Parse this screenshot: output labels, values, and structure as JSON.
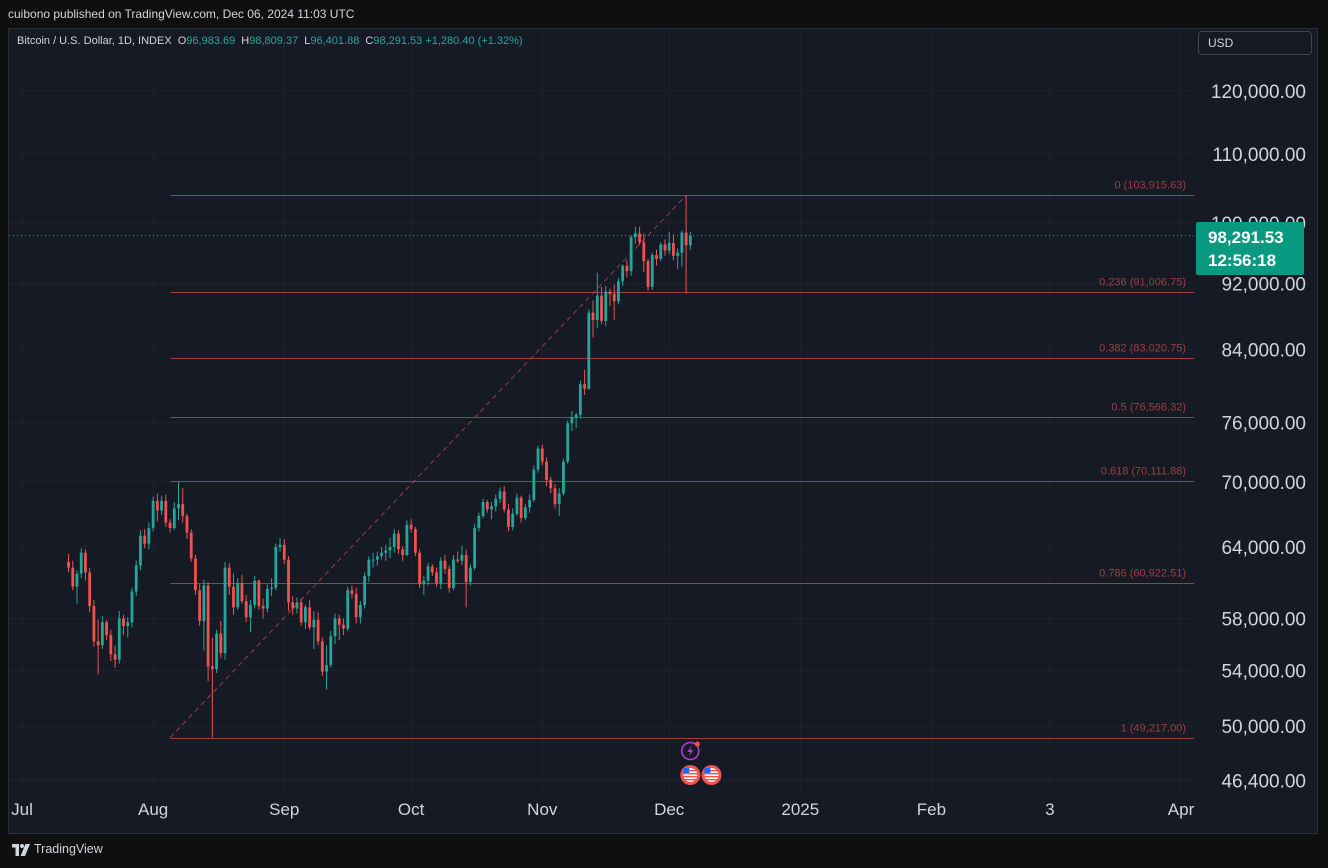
{
  "header": {
    "published_by": "cuibono published on TradingView.com, Dec 06, 2024 11:03 UTC"
  },
  "legend": {
    "symbol": "Bitcoin / U.S. Dollar, 1D, INDEX",
    "open_label": "O",
    "open": "96,983.69",
    "high_label": "H",
    "high": "98,809.37",
    "low_label": "L",
    "low": "96,401.88",
    "close_label": "C",
    "close": "98,291.53",
    "change": "+1,280.40 (+1.32%)"
  },
  "currency_button": "USD",
  "price_tag": {
    "price": "98,291.53",
    "countdown": "12:56:18"
  },
  "footer": {
    "brand": "TradingView"
  },
  "colors": {
    "up": "#26a69a",
    "down": "#ef5350",
    "fib": "#9c3f3f",
    "price_tag": "#089981"
  },
  "chart_data": {
    "type": "candlestick",
    "title": "Bitcoin / U.S. Dollar, 1D, INDEX",
    "xlabel": "",
    "ylabel": "",
    "y_scale": "log",
    "ylim": [
      45000,
      130000
    ],
    "y_ticks": [
      120000,
      110000,
      100000,
      92000,
      84000,
      76000,
      70000,
      64000,
      58000,
      54000,
      50000,
      46400
    ],
    "y_tick_labels": [
      "120,000.00",
      "110,000.00",
      "100,000.00",
      "92,000.00",
      "84,000.00",
      "76,000.00",
      "70,000.00",
      "64,000.00",
      "58,000.00",
      "54,000.00",
      "50,000.00",
      "46,400.00"
    ],
    "x_range": [
      "2024-06-28",
      "2025-04-07"
    ],
    "x_ticks": [
      {
        "date": "2024-07-01",
        "label": "Jul"
      },
      {
        "date": "2024-08-01",
        "label": "Aug"
      },
      {
        "date": "2024-09-01",
        "label": "Sep"
      },
      {
        "date": "2024-10-01",
        "label": "Oct"
      },
      {
        "date": "2024-11-01",
        "label": "Nov"
      },
      {
        "date": "2024-12-01",
        "label": "Dec"
      },
      {
        "date": "2025-01-01",
        "label": "2025"
      },
      {
        "date": "2025-02-01",
        "label": "Feb"
      },
      {
        "date": "2025-03-01",
        "label": "3"
      },
      {
        "date": "2025-04-01",
        "label": "Apr"
      }
    ],
    "last_price": 98291.53,
    "fibonacci": {
      "start": {
        "date": "2024-08-05",
        "price": 49217.0
      },
      "end": {
        "date": "2024-12-05",
        "price": 103915.63
      },
      "levels": [
        {
          "ratio": "0",
          "price": 103915.63,
          "label": "0 (103,915.63)"
        },
        {
          "ratio": "0.236",
          "price": 91006.75,
          "label": "0.236 (91,006.75)"
        },
        {
          "ratio": "0.382",
          "price": 83020.75,
          "label": "0.382 (83,020.75)"
        },
        {
          "ratio": "0.5",
          "price": 76566.32,
          "label": "0.5 (76,566.32)"
        },
        {
          "ratio": "0.618",
          "price": 70111.88,
          "label": "0.618 (70,111.88)"
        },
        {
          "ratio": "0.786",
          "price": 60922.51,
          "label": "0.786 (60,922.51)"
        },
        {
          "ratio": "1",
          "price": 49217.0,
          "label": "1 (49,217.00)"
        }
      ]
    },
    "events": [
      {
        "date": "2024-12-06",
        "type": "dividends-split-icon"
      },
      {
        "date": "2024-12-06",
        "type": "us-economic-event"
      },
      {
        "date": "2024-12-11",
        "type": "us-economic-event"
      }
    ],
    "candles": [
      [
        62700,
        63400,
        61800,
        62200
      ],
      [
        62200,
        62800,
        60300,
        60600
      ],
      [
        60600,
        62000,
        59200,
        61700
      ],
      [
        61700,
        63900,
        61300,
        63500
      ],
      [
        63500,
        63800,
        61100,
        61800
      ],
      [
        61800,
        62200,
        58500,
        59000
      ],
      [
        59000,
        59500,
        55800,
        56200
      ],
      [
        56200,
        57900,
        53700,
        55900
      ],
      [
        55900,
        58200,
        55600,
        57700
      ],
      [
        57700,
        57900,
        56300,
        56700
      ],
      [
        56700,
        57100,
        54700,
        55200
      ],
      [
        55200,
        55900,
        54200,
        54800
      ],
      [
        54800,
        58600,
        54500,
        58000
      ],
      [
        58000,
        58300,
        56700,
        57400
      ],
      [
        57400,
        58100,
        56500,
        57700
      ],
      [
        57700,
        60500,
        57300,
        60200
      ],
      [
        60200,
        62800,
        59800,
        62400
      ],
      [
        62400,
        65500,
        62000,
        65000
      ],
      [
        65000,
        65600,
        63900,
        64300
      ],
      [
        64300,
        66200,
        63800,
        65700
      ],
      [
        65700,
        68600,
        65400,
        68200
      ],
      [
        68200,
        68900,
        66300,
        67300
      ],
      [
        67300,
        68700,
        66900,
        68200
      ],
      [
        68200,
        68800,
        65800,
        66200
      ],
      [
        66200,
        66500,
        65300,
        65700
      ],
      [
        65700,
        68100,
        65500,
        67500
      ],
      [
        67500,
        70000,
        66400,
        67900
      ],
      [
        67900,
        69400,
        66200,
        66800
      ],
      [
        66800,
        67000,
        64700,
        65300
      ],
      [
        65300,
        65600,
        62700,
        63000
      ],
      [
        63000,
        63300,
        59900,
        60300
      ],
      [
        60300,
        60800,
        57400,
        57800
      ],
      [
        57800,
        61200,
        55500,
        60700
      ],
      [
        60700,
        61000,
        53200,
        54300
      ],
      [
        54300,
        56500,
        49217,
        54100
      ],
      [
        54100,
        57100,
        53800,
        56800
      ],
      [
        56800,
        57800,
        54900,
        55300
      ],
      [
        55300,
        62700,
        54800,
        62200
      ],
      [
        62200,
        62600,
        59900,
        60600
      ],
      [
        60600,
        61700,
        58300,
        58900
      ],
      [
        58900,
        61300,
        58700,
        60900
      ],
      [
        60900,
        61600,
        59200,
        59400
      ],
      [
        59400,
        59900,
        57700,
        58100
      ],
      [
        58100,
        59500,
        56900,
        59100
      ],
      [
        59100,
        61500,
        58800,
        61100
      ],
      [
        61100,
        61200,
        58700,
        59000
      ],
      [
        59000,
        59600,
        58000,
        58800
      ],
      [
        58800,
        60800,
        58500,
        60400
      ],
      [
        60400,
        61300,
        59800,
        60500
      ],
      [
        60500,
        64300,
        60300,
        64000
      ],
      [
        64000,
        64800,
        63600,
        64200
      ],
      [
        64200,
        64700,
        62500,
        62900
      ],
      [
        62900,
        63200,
        58600,
        59300
      ],
      [
        59300,
        59800,
        58300,
        58800
      ],
      [
        58800,
        59700,
        58400,
        59300
      ],
      [
        59300,
        59600,
        57400,
        57700
      ],
      [
        57700,
        59100,
        57200,
        58900
      ],
      [
        58900,
        59500,
        57100,
        57300
      ],
      [
        57300,
        58600,
        55600,
        57900
      ],
      [
        57900,
        58500,
        55900,
        56200
      ],
      [
        56200,
        56500,
        53600,
        53900
      ],
      [
        53900,
        55900,
        52600,
        54400
      ],
      [
        54400,
        57000,
        54200,
        56600
      ],
      [
        56600,
        58400,
        56000,
        58000
      ],
      [
        58000,
        58300,
        56300,
        57500
      ],
      [
        57500,
        58000,
        56700,
        57200
      ],
      [
        57200,
        60600,
        57000,
        60300
      ],
      [
        60300,
        60700,
        59600,
        60000
      ],
      [
        60000,
        60500,
        57600,
        58100
      ],
      [
        58100,
        59400,
        57600,
        59100
      ],
      [
        59100,
        61800,
        58800,
        61500
      ],
      [
        61500,
        63200,
        61000,
        62900
      ],
      [
        62900,
        63500,
        62200,
        62900
      ],
      [
        62900,
        63600,
        62400,
        63200
      ],
      [
        63200,
        64000,
        62900,
        63500
      ],
      [
        63500,
        64200,
        62800,
        63700
      ],
      [
        63700,
        64800,
        63000,
        64000
      ],
      [
        64000,
        65600,
        63500,
        65200
      ],
      [
        65200,
        65500,
        63400,
        63800
      ],
      [
        63800,
        64100,
        62800,
        63300
      ],
      [
        63300,
        66400,
        63200,
        66000
      ],
      [
        66000,
        66500,
        65300,
        65600
      ],
      [
        65600,
        65800,
        63200,
        63500
      ],
      [
        63500,
        63800,
        60500,
        60800
      ],
      [
        60800,
        61500,
        59900,
        61100
      ],
      [
        61100,
        62600,
        60700,
        62300
      ],
      [
        62300,
        62500,
        61500,
        61800
      ],
      [
        61800,
        62200,
        60600,
        60900
      ],
      [
        60900,
        63100,
        60400,
        62800
      ],
      [
        62800,
        63300,
        61700,
        62100
      ],
      [
        62100,
        62400,
        60100,
        60500
      ],
      [
        60500,
        63300,
        60300,
        62900
      ],
      [
        62900,
        63600,
        62600,
        62800
      ],
      [
        62800,
        64100,
        62400,
        63300
      ],
      [
        63300,
        63800,
        58900,
        61000
      ],
      [
        61000,
        62500,
        60700,
        62200
      ],
      [
        62200,
        66100,
        62000,
        65700
      ],
      [
        65700,
        67100,
        65400,
        66800
      ],
      [
        66800,
        68400,
        66600,
        68100
      ],
      [
        68100,
        68300,
        67100,
        67400
      ],
      [
        67400,
        68100,
        66500,
        67700
      ],
      [
        67700,
        68800,
        67200,
        68400
      ],
      [
        68400,
        69500,
        68000,
        69100
      ],
      [
        69100,
        69600,
        67100,
        67400
      ],
      [
        67400,
        67900,
        65400,
        65800
      ],
      [
        65800,
        67500,
        65500,
        67000
      ],
      [
        67000,
        68900,
        66800,
        68500
      ],
      [
        68500,
        68700,
        66200,
        66600
      ],
      [
        66600,
        67900,
        66400,
        67600
      ],
      [
        67600,
        68800,
        67100,
        68300
      ],
      [
        68300,
        71600,
        68100,
        71200
      ],
      [
        71200,
        73600,
        70900,
        73300
      ],
      [
        73300,
        73700,
        71600,
        72000
      ],
      [
        72000,
        72400,
        69600,
        70200
      ],
      [
        70200,
        70500,
        68900,
        69400
      ],
      [
        69400,
        69800,
        67500,
        67900
      ],
      [
        67900,
        69400,
        66800,
        68900
      ],
      [
        68900,
        72300,
        68700,
        72000
      ],
      [
        72000,
        76200,
        71800,
        75900
      ],
      [
        75900,
        77200,
        75100,
        76500
      ],
      [
        76500,
        77000,
        75400,
        76800
      ],
      [
        76800,
        80500,
        76400,
        80100
      ],
      [
        80100,
        81700,
        78900,
        79600
      ],
      [
        79600,
        88800,
        79500,
        88400
      ],
      [
        88400,
        89900,
        85400,
        87500
      ],
      [
        87500,
        93400,
        86500,
        90500
      ],
      [
        90500,
        91600,
        87000,
        87400
      ],
      [
        87400,
        91700,
        86800,
        91000
      ],
      [
        91000,
        91400,
        89200,
        90700
      ],
      [
        90700,
        91900,
        87500,
        89800
      ],
      [
        89800,
        92700,
        89400,
        92300
      ],
      [
        92300,
        94500,
        91700,
        94300
      ],
      [
        94300,
        95000,
        92800,
        93600
      ],
      [
        93600,
        98400,
        93000,
        98100
      ],
      [
        98100,
        99500,
        97200,
        98600
      ],
      [
        98600,
        99500,
        97000,
        97400
      ],
      [
        97400,
        98600,
        93500,
        94900
      ],
      [
        94900,
        95200,
        91100,
        91600
      ],
      [
        91600,
        96000,
        91200,
        95700
      ],
      [
        95700,
        96400,
        94300,
        95200
      ],
      [
        95200,
        97400,
        94900,
        97100
      ],
      [
        97100,
        97800,
        95600,
        96300
      ],
      [
        96300,
        98800,
        95800,
        97300
      ],
      [
        97300,
        98500,
        95000,
        95600
      ],
      [
        95600,
        96600,
        93900,
        96000
      ],
      [
        96000,
        99000,
        94200,
        98700
      ],
      [
        98700,
        103915.63,
        90800,
        97000
      ],
      [
        97000,
        98809,
        96400,
        98291.53
      ]
    ]
  }
}
